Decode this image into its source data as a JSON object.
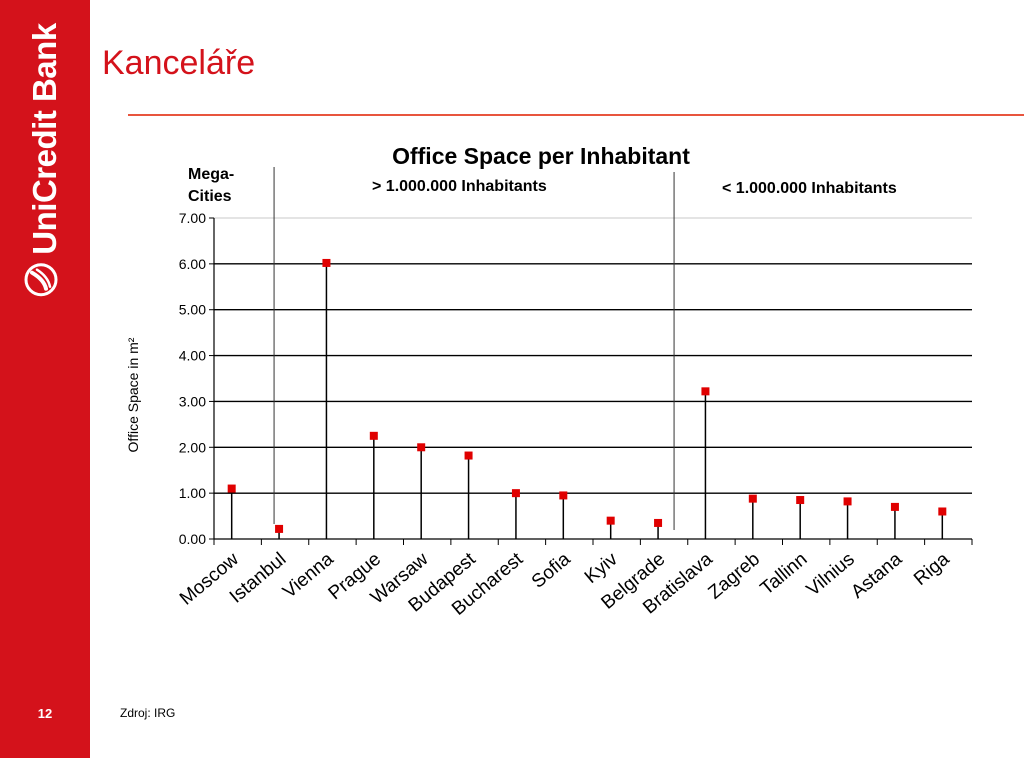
{
  "slide": {
    "title": "Kanceláře",
    "page_number": "12",
    "source": "Zdroj: IRG",
    "brand": "UniCredit Bank",
    "brand_color": "#d4121b",
    "logo_icon": "unicredit-logo-icon"
  },
  "chart_data": {
    "type": "lollipop",
    "title": "Office Space per Inhabitant",
    "ylabel": "Office Space in m²",
    "xlabel": "",
    "ylim": [
      0,
      7
    ],
    "yticks": [
      "0.00",
      "1.00",
      "2.00",
      "3.00",
      "4.00",
      "5.00",
      "6.00",
      "7.00"
    ],
    "grid": true,
    "marker_color": "#e00000",
    "categories": [
      "Moscow",
      "Istanbul",
      "Vienna",
      "Prague",
      "Warsaw",
      "Budapest",
      "Bucharest",
      "Sofia",
      "Kyiv",
      "Belgrade",
      "Bratislava",
      "Zagreb",
      "Tallinn",
      "Vilnius",
      "Astana",
      "Riga"
    ],
    "values": [
      1.1,
      0.22,
      6.02,
      2.25,
      2.0,
      1.82,
      1.0,
      0.95,
      0.4,
      0.35,
      3.22,
      0.88,
      0.85,
      0.82,
      0.7,
      0.6
    ],
    "groups": [
      {
        "label": "Mega-\nCities",
        "label_lines": [
          "Mega-",
          "Cities"
        ],
        "categories": [
          "Moscow",
          "Istanbul"
        ]
      },
      {
        "label": "> 1.000.000 Inhabitants",
        "categories": [
          "Vienna",
          "Prague",
          "Warsaw",
          "Budapest",
          "Bucharest",
          "Sofia",
          "Kyiv",
          "Belgrade"
        ]
      },
      {
        "label": "< 1.000.000 Inhabitants",
        "categories": [
          "Bratislava",
          "Zagreb",
          "Tallinn",
          "Vilnius",
          "Astana",
          "Riga"
        ]
      }
    ]
  }
}
